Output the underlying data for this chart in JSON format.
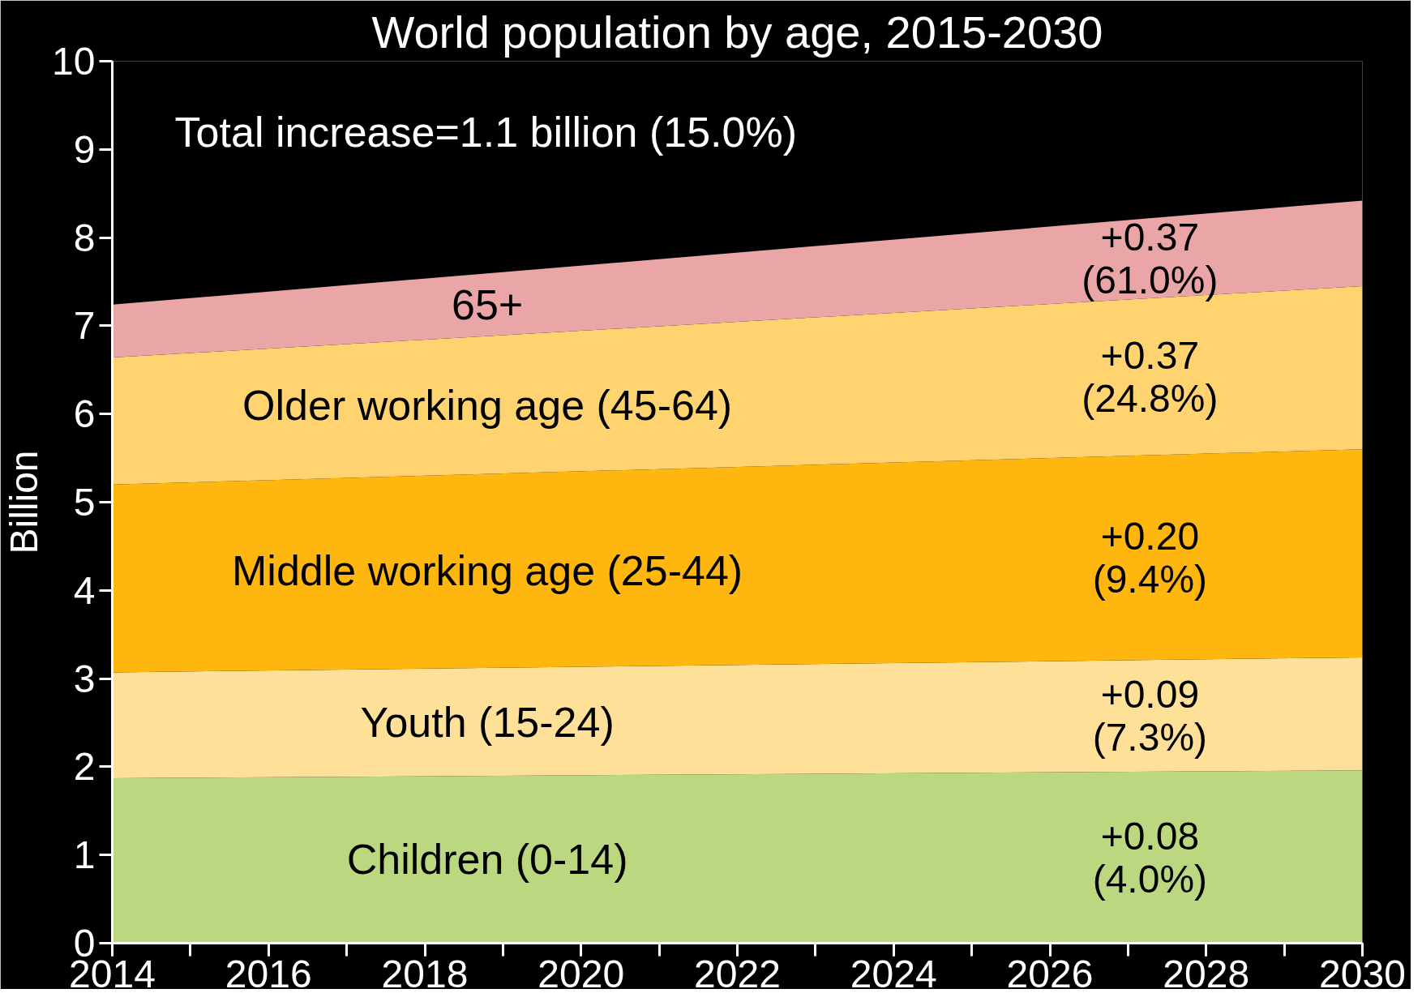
{
  "chart_data": {
    "type": "area",
    "stacked": true,
    "title": "World population by age, 2015-2030",
    "subtitle": "Total increase=1.1 billion (15.0%)",
    "ylabel": "Billion",
    "x": [
      2014,
      2030
    ],
    "series": [
      {
        "name": "Children (0-14)",
        "color": "#bbd77f",
        "values": [
          1.87,
          1.96
        ]
      },
      {
        "name": "Youth (15-24)",
        "color": "#ffe099",
        "values": [
          1.2,
          1.28
        ]
      },
      {
        "name": "Middle working age (25-44)",
        "color": "#ffb70f",
        "values": [
          2.13,
          2.36
        ]
      },
      {
        "name": "Older working age (45-64)",
        "color": "#ffd470",
        "values": [
          1.44,
          1.85
        ]
      },
      {
        "name": "65+",
        "color": "#eaa6a7",
        "values": [
          0.6,
          0.97
        ]
      }
    ],
    "annotations": [
      "+0.37\n(61.0%)",
      "+0.37\n(24.8%)",
      "+0.20\n(9.4%)",
      "+0.09\n(7.3%)",
      "+0.08\n(4.0%)"
    ],
    "xlim": [
      2014,
      2030
    ],
    "xticks": [
      2014,
      2016,
      2018,
      2020,
      2022,
      2024,
      2026,
      2028,
      2030
    ],
    "ylim": [
      0,
      10
    ],
    "yticks": [
      0,
      1,
      2,
      3,
      4,
      5,
      6,
      7,
      8,
      9,
      10
    ],
    "grid": false
  }
}
